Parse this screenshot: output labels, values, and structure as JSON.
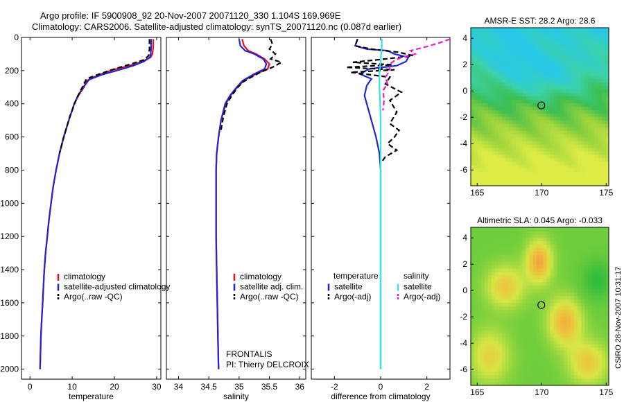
{
  "header": {
    "line1": "Argo profile: IF 5900908_92 20-Nov-2007 20071120_330 1.104S 169.969E",
    "line2": "Climatology: CARS2006. Satellite-adjusted climatology: synTS_20071120.nc (0.087d earlier)"
  },
  "credit": "CSIRO 28-Nov-2007 10:31:17",
  "colors": {
    "clim": "#e8101a",
    "satellite": "#1f24d6",
    "argo": "#000000",
    "sal_sat": "#36e3e8",
    "sal_argo": "#e51ed6"
  },
  "chart_data": [
    {
      "type": "line",
      "id": "temperature",
      "xlabel": "temperature",
      "xlim": [
        -2,
        31
      ],
      "ylim": [
        2060,
        0
      ],
      "xticks": [
        0,
        10,
        20,
        30
      ],
      "yticks": [
        0,
        200,
        400,
        600,
        800,
        1000,
        1200,
        1400,
        1600,
        1800,
        2000
      ],
      "legend": [
        "climatology",
        "satellite-adjusted climatology",
        "Argo(..raw -QC)"
      ],
      "series": [
        {
          "name": "climatology",
          "color": "#e8101a",
          "dash": "",
          "points": [
            [
              29.2,
              10
            ],
            [
              29.2,
              60
            ],
            [
              29.0,
              100
            ],
            [
              28.6,
              120
            ],
            [
              27,
              140
            ],
            [
              25,
              160
            ],
            [
              22,
              180
            ],
            [
              19,
              200
            ],
            [
              16,
              230
            ],
            [
              13.5,
              260
            ],
            [
              12.8,
              300
            ],
            [
              11.5,
              350
            ],
            [
              10.5,
              400
            ],
            [
              9.2,
              500
            ],
            [
              8.0,
              600
            ],
            [
              7.0,
              700
            ],
            [
              6.2,
              800
            ],
            [
              5.5,
              900
            ],
            [
              5.0,
              1000
            ],
            [
              4.5,
              1100
            ],
            [
              4.1,
              1200
            ],
            [
              3.7,
              1300
            ],
            [
              3.4,
              1400
            ],
            [
              3.2,
              1500
            ],
            [
              3.0,
              1600
            ],
            [
              2.8,
              1700
            ],
            [
              2.6,
              1800
            ],
            [
              2.5,
              1900
            ],
            [
              2.4,
              2000
            ]
          ]
        },
        {
          "name": "satellite-adjusted climatology",
          "color": "#1f24d6",
          "dash": "",
          "points": [
            [
              28.7,
              10
            ],
            [
              28.7,
              60
            ],
            [
              28.6,
              100
            ],
            [
              28.4,
              120
            ],
            [
              27,
              145
            ],
            [
              24.5,
              170
            ],
            [
              20.5,
              200
            ],
            [
              17,
              225
            ],
            [
              14,
              255
            ],
            [
              12.9,
              290
            ],
            [
              11.6,
              340
            ],
            [
              10.5,
              400
            ],
            [
              9.2,
              500
            ],
            [
              8.0,
              600
            ],
            [
              7.0,
              700
            ],
            [
              6.2,
              800
            ],
            [
              5.5,
              900
            ],
            [
              5.0,
              1000
            ],
            [
              4.5,
              1100
            ],
            [
              4.1,
              1200
            ],
            [
              3.7,
              1300
            ],
            [
              3.4,
              1400
            ],
            [
              3.2,
              1500
            ],
            [
              3.0,
              1600
            ],
            [
              2.8,
              1700
            ],
            [
              2.6,
              1800
            ],
            [
              2.5,
              1900
            ],
            [
              2.4,
              2000
            ]
          ]
        },
        {
          "name": "Argo(..raw -QC)",
          "color": "#000000",
          "dash": "7,4",
          "points": [
            [
              28.3,
              10
            ],
            [
              28.3,
              70
            ],
            [
              28.1,
              110
            ],
            [
              27,
              135
            ],
            [
              24,
              160
            ],
            [
              20,
              190
            ],
            [
              16.5,
              220
            ],
            [
              13.4,
              250
            ],
            [
              12.8,
              280
            ],
            [
              12.0,
              320
            ],
            [
              11.0,
              370
            ],
            [
              10.3,
              420
            ],
            [
              9.4,
              480
            ],
            [
              8.6,
              550
            ],
            [
              7.8,
              620
            ],
            [
              7.0,
              700
            ]
          ]
        }
      ]
    },
    {
      "type": "line",
      "id": "salinity",
      "xlabel": "salinity",
      "xlim": [
        33.8,
        36.1
      ],
      "ylim": [
        2060,
        0
      ],
      "xticks": [
        34,
        34.5,
        35,
        35.5,
        36
      ],
      "legend": [
        "climatology",
        "satellite adj. clim.",
        "Argo(..raw -QC)"
      ],
      "annotation": [
        "FRONTALIS",
        "PI: Thierry DELCROIX"
      ],
      "series": [
        {
          "name": "climatology",
          "color": "#e8101a",
          "dash": "",
          "points": [
            [
              35.05,
              10
            ],
            [
              35.08,
              50
            ],
            [
              35.15,
              80
            ],
            [
              35.28,
              100
            ],
            [
              35.42,
              130
            ],
            [
              35.5,
              160
            ],
            [
              35.47,
              190
            ],
            [
              35.28,
              220
            ],
            [
              35.08,
              260
            ],
            [
              34.97,
              300
            ],
            [
              34.86,
              350
            ],
            [
              34.78,
              400
            ],
            [
              34.7,
              500
            ],
            [
              34.66,
              600
            ],
            [
              34.63,
              700
            ],
            [
              34.62,
              800
            ],
            [
              34.62,
              900
            ],
            [
              34.62,
              1000
            ],
            [
              34.62,
              1200
            ],
            [
              34.63,
              1400
            ],
            [
              34.64,
              1600
            ],
            [
              34.65,
              1800
            ],
            [
              34.66,
              2000
            ]
          ]
        },
        {
          "name": "satellite adj. clim.",
          "color": "#1f24d6",
          "dash": "",
          "points": [
            [
              35.0,
              10
            ],
            [
              35.02,
              50
            ],
            [
              35.1,
              80
            ],
            [
              35.25,
              100
            ],
            [
              35.4,
              130
            ],
            [
              35.45,
              160
            ],
            [
              35.42,
              190
            ],
            [
              35.25,
              220
            ],
            [
              35.06,
              260
            ],
            [
              34.96,
              300
            ],
            [
              34.85,
              350
            ],
            [
              34.77,
              400
            ],
            [
              34.7,
              500
            ],
            [
              34.66,
              600
            ],
            [
              34.63,
              700
            ],
            [
              34.62,
              800
            ],
            [
              34.62,
              900
            ],
            [
              34.62,
              1000
            ],
            [
              34.62,
              1200
            ],
            [
              34.63,
              1400
            ],
            [
              34.64,
              1600
            ],
            [
              34.65,
              1800
            ],
            [
              34.66,
              2000
            ]
          ]
        },
        {
          "name": "Argo(..raw -QC)",
          "color": "#000000",
          "dash": "7,4",
          "points": [
            [
              35.52,
              10
            ],
            [
              35.55,
              40
            ],
            [
              35.5,
              70
            ],
            [
              35.6,
              100
            ],
            [
              35.52,
              130
            ],
            [
              35.7,
              150
            ],
            [
              35.55,
              180
            ],
            [
              35.35,
              210
            ],
            [
              35.2,
              240
            ],
            [
              35.06,
              270
            ],
            [
              34.98,
              300
            ],
            [
              34.88,
              350
            ],
            [
              34.8,
              400
            ],
            [
              34.74,
              480
            ],
            [
              34.7,
              560
            ]
          ]
        }
      ]
    },
    {
      "type": "line",
      "id": "difference",
      "xlabel": "difference from climatology",
      "xlim": [
        -3,
        3
      ],
      "ylim": [
        2060,
        0
      ],
      "xticks": [
        -2,
        0,
        2
      ],
      "legend": [
        "temperature",
        "satellite",
        "Argo(-adj)",
        "salinity",
        "satellite",
        "Argo(-adj)"
      ],
      "series": [
        {
          "name": "satellite",
          "color": "#1f24d6",
          "dash": "",
          "points": [
            [
              -1.0,
              10
            ],
            [
              -1.1,
              50
            ],
            [
              -0.6,
              70
            ],
            [
              0.3,
              80
            ],
            [
              0.6,
              100
            ],
            [
              1.2,
              120
            ],
            [
              1.1,
              145
            ],
            [
              0.7,
              170
            ],
            [
              -0.5,
              190
            ],
            [
              -0.9,
              220
            ],
            [
              -0.4,
              250
            ],
            [
              -0.6,
              290
            ],
            [
              -0.7,
              350
            ],
            [
              -0.6,
              400
            ],
            [
              -0.4,
              500
            ],
            [
              -0.2,
              600
            ],
            [
              -0.05,
              700
            ],
            [
              0,
              800
            ],
            [
              0,
              1000
            ],
            [
              0,
              1200
            ],
            [
              0,
              1400
            ],
            [
              0,
              1600
            ],
            [
              0,
              1800
            ],
            [
              0,
              2000
            ]
          ]
        },
        {
          "name": "Argo(-adj)",
          "color": "#000000",
          "dash": "7,4",
          "points": [
            [
              -1.0,
              10
            ],
            [
              -1.1,
              50
            ],
            [
              -0.4,
              70
            ],
            [
              0.8,
              90
            ],
            [
              1.4,
              110
            ],
            [
              0.2,
              130
            ],
            [
              -1.2,
              150
            ],
            [
              0.5,
              165
            ],
            [
              -1.5,
              180
            ],
            [
              0.6,
              195
            ],
            [
              -1.3,
              210
            ],
            [
              0.4,
              240
            ],
            [
              0.2,
              280
            ],
            [
              0.9,
              330
            ],
            [
              0.4,
              380
            ],
            [
              0.7,
              450
            ],
            [
              0.4,
              520
            ],
            [
              0.8,
              560
            ],
            [
              0.6,
              600
            ],
            [
              0.3,
              640
            ],
            [
              0.7,
              680
            ],
            [
              0.2,
              720
            ],
            [
              0.0,
              760
            ]
          ]
        },
        {
          "name": "satellite",
          "color": "#36e3e8",
          "dash": "",
          "points": [
            [
              0.05,
              10
            ],
            [
              0.05,
              60
            ],
            [
              0.02,
              100
            ],
            [
              0.0,
              150
            ],
            [
              -0.05,
              200
            ],
            [
              -0.05,
              250
            ],
            [
              -0.05,
              300
            ],
            [
              -0.02,
              400
            ],
            [
              0.0,
              500
            ],
            [
              0.0,
              600
            ],
            [
              0.0,
              800
            ],
            [
              0.0,
              1000
            ],
            [
              0.0,
              1200
            ],
            [
              0.0,
              1400
            ],
            [
              0.0,
              1600
            ],
            [
              0.0,
              1800
            ],
            [
              0.0,
              2000
            ]
          ]
        },
        {
          "name": "Argo(-adj)",
          "color": "#e51ed6",
          "dash": "7,4",
          "points": [
            [
              3.0,
              10
            ],
            [
              2.6,
              30
            ],
            [
              2.0,
              55
            ],
            [
              1.3,
              80
            ],
            [
              1.5,
              100
            ],
            [
              0.9,
              120
            ],
            [
              0.6,
              140
            ],
            [
              0.4,
              160
            ],
            [
              0.4,
              200
            ],
            [
              0.2,
              240
            ],
            [
              0.3,
              280
            ],
            [
              0.1,
              320
            ],
            [
              0.15,
              380
            ],
            [
              0.1,
              440
            ]
          ]
        }
      ]
    },
    {
      "type": "heatmap",
      "id": "sst_map",
      "title": "AMSR-E SST: 28.2  Argo: 28.6",
      "xlim": [
        164.5,
        175.2
      ],
      "ylim": [
        -7.2,
        4.8
      ],
      "xticks": [
        165,
        170,
        175
      ],
      "yticks": [
        -6,
        -4,
        -2,
        0,
        2,
        4
      ],
      "marker": {
        "lon": 169.97,
        "lat": -1.1
      }
    },
    {
      "type": "heatmap",
      "id": "sla_map",
      "title": "Altimetric SLA: 0.045  Argo: -0.033",
      "xlim": [
        164.5,
        175.2
      ],
      "ylim": [
        -7.2,
        4.8
      ],
      "xticks": [
        165,
        170,
        175
      ],
      "yticks": [
        -6,
        -4,
        -2,
        0,
        2,
        4
      ],
      "marker": {
        "lon": 169.97,
        "lat": -1.1
      }
    }
  ]
}
